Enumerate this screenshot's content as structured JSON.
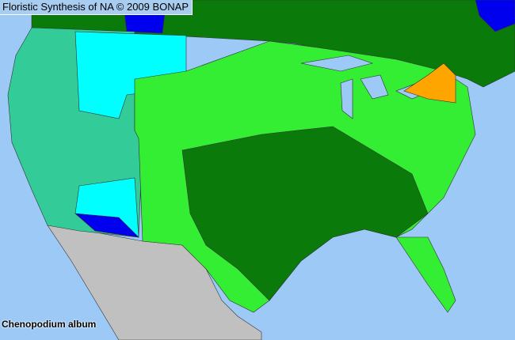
{
  "title": "Floristic Synthesis of NA © 2009 BONAP",
  "species": "Chenopodium album",
  "colors": {
    "ocean": "#9cc9f5",
    "canada": "#0a7a0a",
    "mexico": "#c0c0c0",
    "present_native": "#0a7a0a",
    "present_light": "#33ee33",
    "teal": "#33cc99",
    "cyan": "#00ffff",
    "blue": "#0000ee",
    "orange": "#ffa500"
  }
}
